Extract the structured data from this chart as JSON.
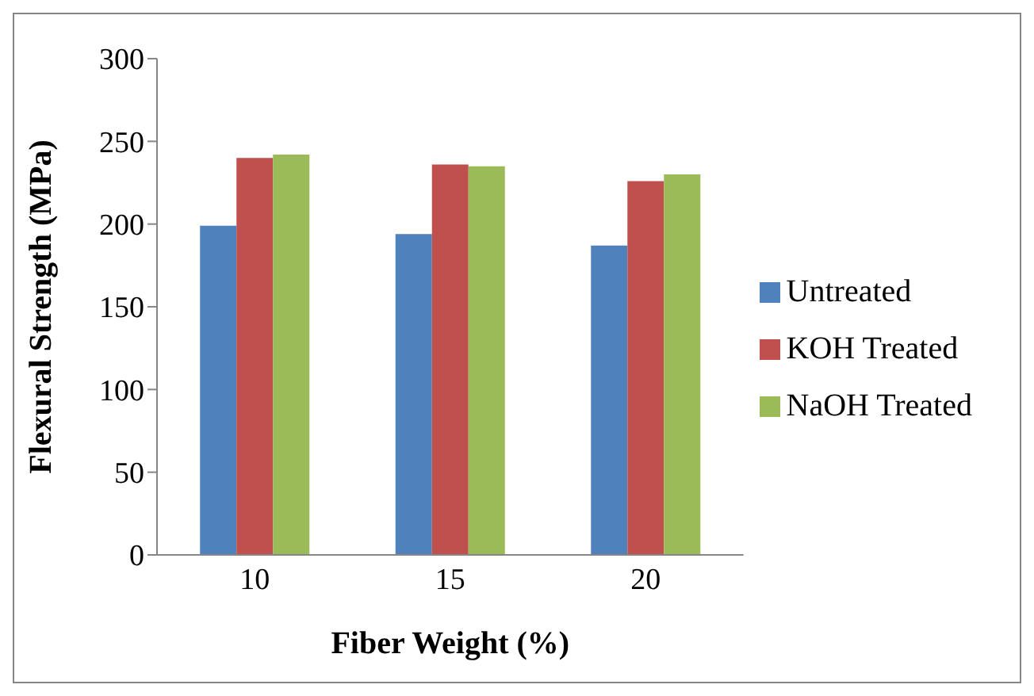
{
  "chart_data": {
    "type": "bar",
    "xlabel": "Fiber Weight (%)",
    "ylabel": "Flexural Strength (MPa)",
    "categories": [
      "10",
      "15",
      "20"
    ],
    "series": [
      {
        "name": "Untreated",
        "color": "#4f81bd",
        "values": [
          199,
          194,
          187
        ]
      },
      {
        "name": "KOH Treated",
        "color": "#c0504d",
        "values": [
          240,
          236,
          226
        ]
      },
      {
        "name": "NaOH Treated",
        "color": "#9bbb59",
        "values": [
          242,
          235,
          230
        ]
      }
    ],
    "ylim": [
      0,
      300
    ],
    "yticks": [
      0,
      50,
      100,
      150,
      200,
      250,
      300
    ],
    "grid": false,
    "legend": "right"
  }
}
